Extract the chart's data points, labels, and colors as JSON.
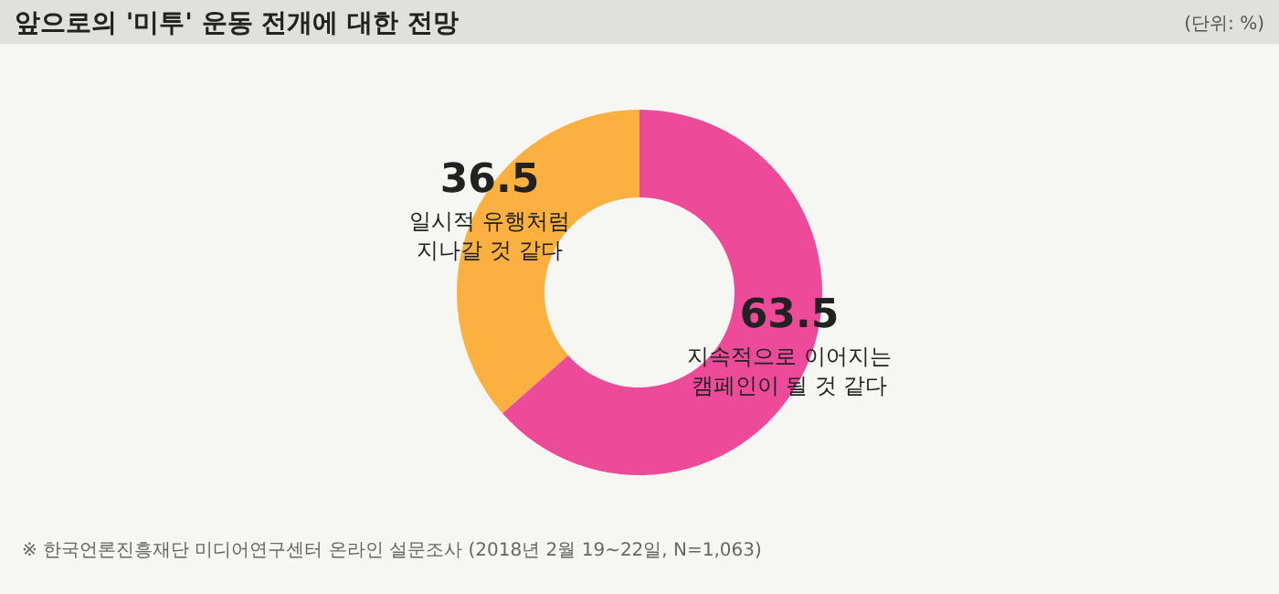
{
  "chart_data": {
    "type": "donut",
    "title": "앞으로의 '미투' 운동 전개에 대한 전망",
    "categories": [
      "지속적으로 이어지는 캠페인이 될 것 같다",
      "일시적 유행처럼 지나갈 것 같다"
    ],
    "values": [
      63.5,
      36.5
    ],
    "colors": [
      "#ee4a9a",
      "#fbb040"
    ],
    "data_labels": true,
    "annotations": [
      "(단위: %)",
      "※ 한국언론진흥재단 미디어연구센터 온라인 설문조사 (2018년 2월 19~22일, N=1,063)"
    ]
  }
}
